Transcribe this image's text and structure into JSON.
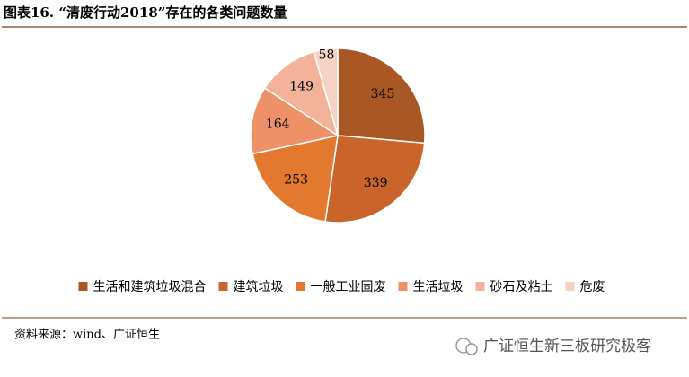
{
  "chart_data": {
    "type": "pie",
    "title": "图表16. “清废行动2018”存在的各类问题数量",
    "categories": [
      "生活和建筑垃圾混合",
      "建筑垃圾",
      "一般工业固废",
      "生活垃圾",
      "砂石及粘土",
      "危废"
    ],
    "values": [
      345,
      339,
      253,
      164,
      149,
      58
    ],
    "colors": [
      "#a95724",
      "#c9652a",
      "#e2792e",
      "#ee9168",
      "#f3b39a",
      "#f7d3c6"
    ],
    "legend": "bottom",
    "source": "资料来源：wind、广证恒生",
    "watermark": "广证恒生新三板研究极客"
  }
}
